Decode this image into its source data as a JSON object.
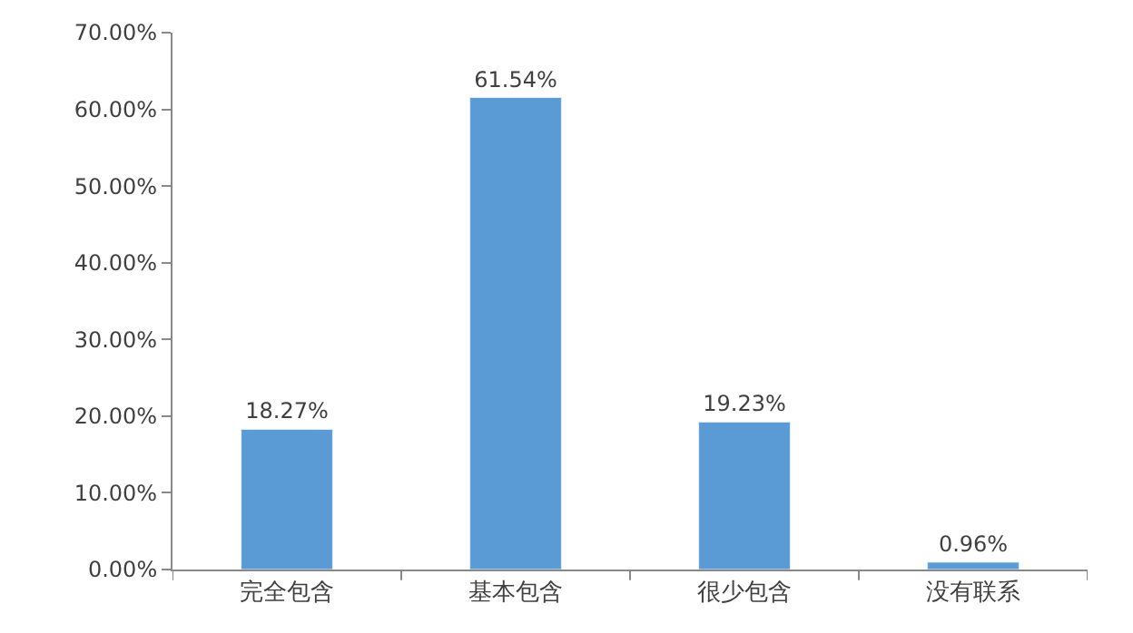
{
  "chart_data": {
    "type": "bar",
    "categories": [
      "完全包含",
      "基本包含",
      "很少包含",
      "没有联系"
    ],
    "values": [
      18.27,
      61.54,
      19.23,
      0.96
    ],
    "value_labels": [
      "18.27%",
      "61.54%",
      "19.23%",
      "0.96%"
    ],
    "color": "#5b9bd5",
    "ylim": [
      0,
      70
    ],
    "yticks": [
      {
        "value": 0,
        "label": "0.00%"
      },
      {
        "value": 10,
        "label": "10.00%"
      },
      {
        "value": 20,
        "label": "20.00%"
      },
      {
        "value": 30,
        "label": "30.00%"
      },
      {
        "value": 40,
        "label": "40.00%"
      },
      {
        "value": 50,
        "label": "50.00%"
      },
      {
        "value": 60,
        "label": "60.00%"
      },
      {
        "value": 70,
        "label": "70.00%"
      }
    ],
    "legend": false
  }
}
